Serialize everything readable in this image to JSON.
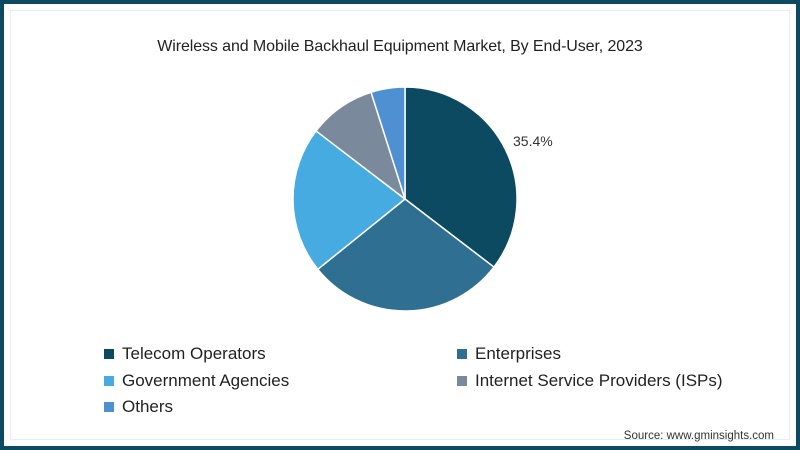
{
  "chart_data": {
    "type": "pie",
    "title": "Wireless and Mobile Backhaul Equipment Market, By End-User, 2023",
    "categories": [
      "Telecom Operators",
      "Enterprises",
      "Government Agencies",
      "Internet Service Providers (ISPs)",
      "Others"
    ],
    "values": [
      35.4,
      28.8,
      21.2,
      9.7,
      4.9
    ],
    "colors": [
      "#0c4a62",
      "#2e6f92",
      "#45abe0",
      "#7a8a9c",
      "#4f90d2"
    ],
    "data_labels": [
      {
        "category": "Telecom Operators",
        "text": "35.4%"
      }
    ],
    "start_angle": "12 o'clock, clockwise",
    "legend_position": "bottom",
    "source": "Source: www.gminsights.com"
  },
  "header": {
    "title": "Wireless and Mobile Backhaul Equipment Market, By End-User, 2023"
  },
  "pie": {
    "label_telecom": "35.4%"
  },
  "legend": {
    "items": [
      {
        "label": "Telecom Operators",
        "color": "#0c4a62"
      },
      {
        "label": "Enterprises",
        "color": "#2e6f92"
      },
      {
        "label": "Government Agencies",
        "color": "#45abe0"
      },
      {
        "label": "Internet Service Providers (ISPs)",
        "color": "#7a8a9c"
      },
      {
        "label": "Others",
        "color": "#4f90d2"
      }
    ]
  },
  "footer": {
    "source": "Source: www.gminsights.com"
  },
  "theme": {
    "border_color": "#0c4a62"
  }
}
